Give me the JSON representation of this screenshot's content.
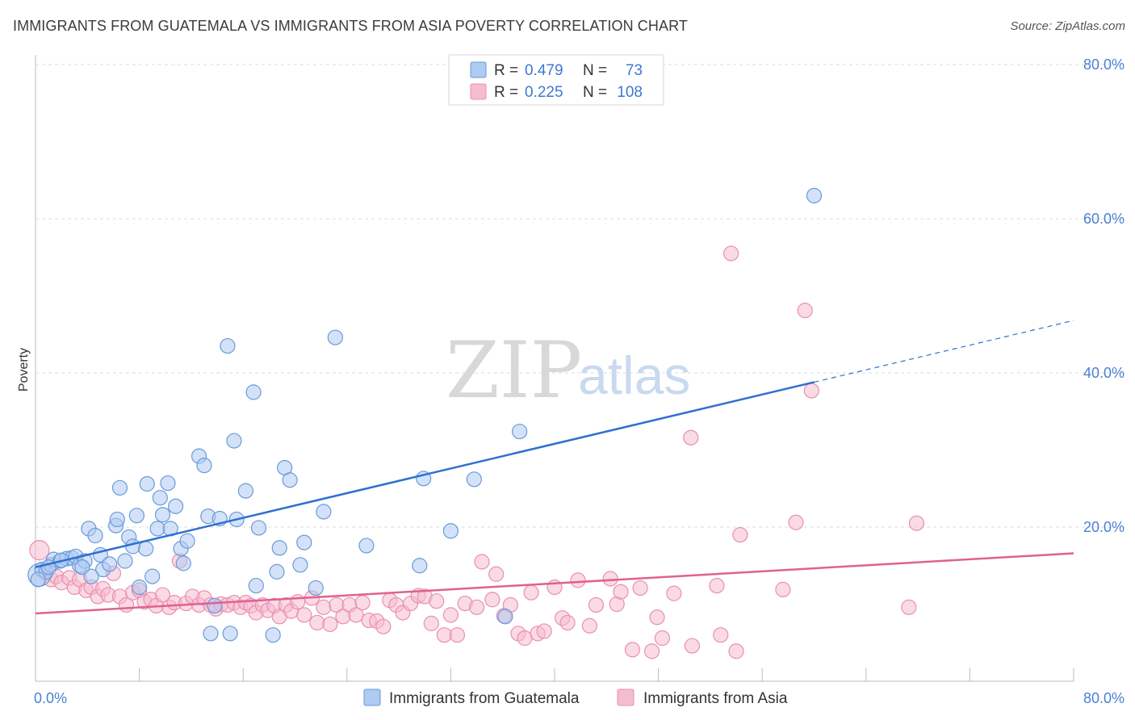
{
  "title": "IMMIGRANTS FROM GUATEMALA VS IMMIGRANTS FROM ASIA POVERTY CORRELATION CHART",
  "source": "Source: ZipAtlas.com",
  "watermark": {
    "zip": "ZIP",
    "atlas": "atlas"
  },
  "colors": {
    "guatemala_fill": "#aecbf2",
    "guatemala_stroke": "#6a9ad9",
    "guatemala_line": "#2f6fcf",
    "asia_fill": "#f6bcd0",
    "asia_stroke": "#e98fb0",
    "asia_line": "#e0618f",
    "tick": "#4a7fd4",
    "grid": "#dddddd"
  },
  "legend": {
    "r_label": "R =",
    "n_label": "N =",
    "rows": [
      {
        "r": "0.479",
        "n": "73"
      },
      {
        "r": "0.225",
        "n": "108"
      }
    ]
  },
  "chart_data": {
    "type": "scatter",
    "title": "IMMIGRANTS FROM GUATEMALA VS IMMIGRANTS FROM ASIA POVERTY CORRELATION CHART",
    "xlabel": "",
    "ylabel": "Poverty",
    "xlim": [
      0,
      80
    ],
    "ylim": [
      0,
      80
    ],
    "x_tick_labels": [
      "0.0%",
      "80.0%"
    ],
    "y_ticks": [
      20,
      40,
      60,
      80
    ],
    "y_tick_labels": [
      "20.0%",
      "40.0%",
      "60.0%",
      "80.0%"
    ],
    "grid": true,
    "legend_position": "top-center",
    "series": [
      {
        "name": "Immigrants from Guatemala",
        "R": 0.479,
        "N": 73,
        "trend": {
          "x0": 0,
          "y0": 14.8,
          "x1": 60,
          "y1": 38.8,
          "dashed_to_x": 80,
          "dashed_to_y": 46.8
        },
        "points": [
          [
            0.3,
            13.8
          ],
          [
            0.5,
            14.5
          ],
          [
            0.8,
            14.2
          ],
          [
            1.2,
            15.1
          ],
          [
            1.4,
            15.8
          ],
          [
            1.9,
            15.6
          ],
          [
            2.4,
            15.9
          ],
          [
            2.8,
            16.0
          ],
          [
            3.1,
            16.2
          ],
          [
            3.4,
            15.0
          ],
          [
            3.8,
            15.6
          ],
          [
            4.1,
            19.8
          ],
          [
            4.6,
            18.9
          ],
          [
            5.0,
            16.4
          ],
          [
            5.2,
            14.5
          ],
          [
            5.7,
            15.2
          ],
          [
            6.2,
            20.2
          ],
          [
            6.3,
            21.0
          ],
          [
            6.5,
            25.1
          ],
          [
            6.9,
            15.6
          ],
          [
            7.2,
            18.7
          ],
          [
            7.5,
            17.5
          ],
          [
            7.8,
            21.5
          ],
          [
            8.0,
            12.2
          ],
          [
            8.5,
            17.2
          ],
          [
            8.6,
            25.6
          ],
          [
            9.0,
            13.6
          ],
          [
            9.4,
            19.8
          ],
          [
            9.6,
            23.8
          ],
          [
            9.8,
            21.6
          ],
          [
            10.2,
            25.7
          ],
          [
            10.4,
            19.8
          ],
          [
            10.8,
            22.7
          ],
          [
            11.2,
            17.2
          ],
          [
            11.4,
            15.3
          ],
          [
            11.7,
            18.2
          ],
          [
            12.6,
            29.2
          ],
          [
            13.0,
            28.0
          ],
          [
            13.3,
            21.4
          ],
          [
            13.5,
            6.2
          ],
          [
            13.8,
            9.8
          ],
          [
            14.2,
            21.1
          ],
          [
            14.8,
            43.5
          ],
          [
            15.0,
            6.2
          ],
          [
            15.3,
            31.2
          ],
          [
            15.5,
            21.0
          ],
          [
            16.2,
            24.7
          ],
          [
            16.8,
            37.5
          ],
          [
            17.0,
            12.4
          ],
          [
            17.2,
            19.9
          ],
          [
            18.3,
            6.0
          ],
          [
            18.6,
            14.2
          ],
          [
            18.8,
            17.3
          ],
          [
            19.2,
            27.7
          ],
          [
            19.6,
            26.1
          ],
          [
            20.4,
            15.1
          ],
          [
            20.7,
            18.0
          ],
          [
            21.6,
            12.1
          ],
          [
            22.2,
            22.0
          ],
          [
            23.1,
            44.6
          ],
          [
            25.5,
            17.6
          ],
          [
            29.6,
            15.0
          ],
          [
            29.9,
            26.3
          ],
          [
            32.0,
            19.5
          ],
          [
            33.8,
            26.2
          ],
          [
            36.2,
            8.4
          ],
          [
            37.3,
            32.4
          ],
          [
            60.0,
            63.0
          ],
          [
            0.2,
            13.2
          ],
          [
            1.0,
            14.8
          ],
          [
            2.0,
            15.7
          ],
          [
            3.6,
            14.8
          ],
          [
            4.3,
            13.6
          ]
        ]
      },
      {
        "name": "Immigrants from Asia",
        "R": 0.225,
        "N": 108,
        "trend": {
          "x0": 0,
          "y0": 8.8,
          "x1": 80,
          "y1": 16.6
        },
        "points": [
          [
            0.3,
            17.0
          ],
          [
            0.8,
            14.0
          ],
          [
            1.2,
            13.2
          ],
          [
            1.6,
            13.6
          ],
          [
            2.0,
            12.8
          ],
          [
            2.6,
            13.4
          ],
          [
            3.0,
            12.2
          ],
          [
            3.4,
            13.2
          ],
          [
            3.9,
            11.8
          ],
          [
            4.3,
            12.2
          ],
          [
            4.8,
            11.0
          ],
          [
            5.2,
            12.0
          ],
          [
            5.6,
            11.2
          ],
          [
            6.0,
            14.0
          ],
          [
            6.5,
            11.0
          ],
          [
            7.0,
            9.9
          ],
          [
            7.5,
            11.5
          ],
          [
            8.0,
            11.8
          ],
          [
            8.4,
            10.3
          ],
          [
            8.9,
            10.6
          ],
          [
            9.3,
            9.8
          ],
          [
            9.8,
            11.2
          ],
          [
            10.3,
            9.6
          ],
          [
            10.7,
            10.2
          ],
          [
            11.1,
            15.6
          ],
          [
            11.6,
            10.1
          ],
          [
            12.1,
            11.0
          ],
          [
            12.6,
            9.9
          ],
          [
            13.0,
            10.8
          ],
          [
            13.5,
            9.9
          ],
          [
            13.9,
            9.4
          ],
          [
            14.3,
            10.0
          ],
          [
            14.8,
            9.9
          ],
          [
            15.3,
            10.2
          ],
          [
            15.8,
            9.6
          ],
          [
            16.2,
            10.2
          ],
          [
            16.6,
            9.8
          ],
          [
            17.0,
            8.9
          ],
          [
            17.5,
            9.9
          ],
          [
            17.9,
            9.2
          ],
          [
            18.4,
            9.8
          ],
          [
            18.8,
            8.4
          ],
          [
            19.3,
            9.9
          ],
          [
            19.7,
            9.1
          ],
          [
            20.2,
            10.3
          ],
          [
            20.7,
            8.6
          ],
          [
            21.3,
            10.8
          ],
          [
            21.7,
            7.6
          ],
          [
            22.2,
            9.6
          ],
          [
            22.7,
            7.4
          ],
          [
            23.2,
            9.9
          ],
          [
            23.7,
            8.4
          ],
          [
            24.2,
            9.9
          ],
          [
            24.7,
            8.6
          ],
          [
            25.2,
            10.2
          ],
          [
            25.7,
            7.9
          ],
          [
            26.3,
            7.8
          ],
          [
            26.8,
            7.1
          ],
          [
            27.3,
            10.5
          ],
          [
            27.8,
            9.9
          ],
          [
            28.3,
            8.9
          ],
          [
            28.9,
            10.1
          ],
          [
            29.5,
            11.1
          ],
          [
            30.0,
            11.0
          ],
          [
            30.5,
            7.5
          ],
          [
            30.9,
            10.4
          ],
          [
            31.5,
            6.0
          ],
          [
            32.0,
            8.6
          ],
          [
            32.5,
            6.0
          ],
          [
            33.1,
            10.1
          ],
          [
            34.0,
            9.6
          ],
          [
            34.4,
            15.5
          ],
          [
            35.2,
            10.6
          ],
          [
            35.5,
            13.9
          ],
          [
            36.1,
            8.5
          ],
          [
            36.6,
            9.9
          ],
          [
            37.2,
            6.2
          ],
          [
            37.7,
            5.6
          ],
          [
            38.2,
            11.5
          ],
          [
            38.7,
            6.2
          ],
          [
            39.2,
            6.5
          ],
          [
            40.0,
            12.2
          ],
          [
            40.6,
            8.2
          ],
          [
            41.0,
            7.6
          ],
          [
            41.8,
            13.1
          ],
          [
            42.7,
            7.2
          ],
          [
            43.2,
            9.9
          ],
          [
            44.3,
            13.3
          ],
          [
            44.8,
            10.0
          ],
          [
            45.1,
            11.6
          ],
          [
            46.0,
            4.1
          ],
          [
            46.6,
            12.1
          ],
          [
            47.5,
            3.9
          ],
          [
            47.9,
            8.3
          ],
          [
            48.3,
            5.6
          ],
          [
            49.2,
            11.4
          ],
          [
            50.6,
            4.6
          ],
          [
            52.5,
            12.4
          ],
          [
            52.8,
            6.0
          ],
          [
            53.6,
            55.5
          ],
          [
            54.0,
            3.9
          ],
          [
            54.3,
            19.0
          ],
          [
            57.6,
            11.9
          ],
          [
            58.6,
            20.6
          ],
          [
            59.3,
            48.1
          ],
          [
            59.8,
            37.7
          ],
          [
            50.5,
            31.6
          ],
          [
            67.9,
            20.5
          ],
          [
            67.3,
            9.6
          ]
        ]
      }
    ]
  },
  "bottom_legend": [
    {
      "label": "Immigrants from Guatemala"
    },
    {
      "label": "Immigrants from Asia"
    }
  ]
}
